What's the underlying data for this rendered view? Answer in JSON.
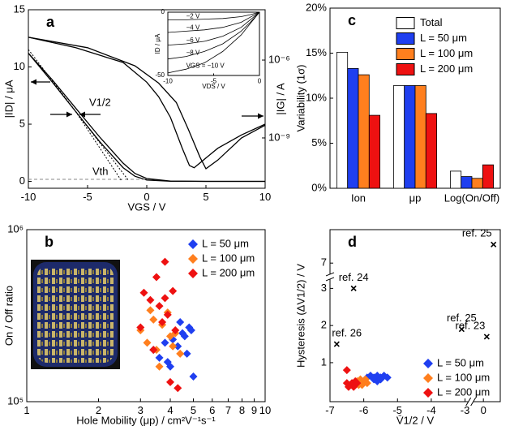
{
  "chart_data": [
    {
      "type": "line",
      "title": "a",
      "xlabel": "VGS / V",
      "ylabel": "|ID| / μA",
      "y2label": "|IG| / A",
      "xlim": [
        -10,
        10
      ],
      "xticks": [
        -10,
        -5,
        0,
        5,
        10
      ],
      "ylim": [
        -0.6,
        15
      ],
      "yticks": [
        0,
        5,
        10,
        15
      ],
      "y2lim": [
        1.15e-11,
        8.7e-05
      ],
      "y2log": true,
      "y2ticks": [
        {
          "value": 1e-09,
          "label": "10⁻⁹"
        },
        {
          "value": 1e-06,
          "label": "10⁻⁶"
        }
      ],
      "annotations": [
        "V1/2",
        "Vth"
      ],
      "series": [
        {
          "color": "#000000",
          "x": [
            -10,
            -8,
            -6,
            -4,
            -2,
            -1,
            0,
            2,
            5,
            10
          ],
          "values": [
            11.2,
            8.7,
            6.1,
            3.5,
            1.2,
            0.45,
            0.12,
            0.02,
            0,
            0
          ]
        },
        {
          "color": "#000000",
          "x": [
            -10,
            -8,
            -6,
            -4,
            -2,
            -1,
            0,
            2,
            5,
            10
          ],
          "values": [
            11.2,
            8.9,
            6.4,
            3.9,
            1.6,
            0.7,
            0.25,
            0.03,
            0,
            0
          ]
        },
        {
          "color": "#000000",
          "axis": "y2",
          "x": [
            -10,
            -6,
            -2,
            0,
            1,
            2,
            3,
            3.6,
            4,
            6,
            8,
            10
          ],
          "values": [
            7.6e-06,
            3e-06,
            8.1e-07,
            1.4e-07,
            3.9e-08,
            6.2e-09,
            4e-10,
            8.7e-11,
            7.1e-11,
            4e-10,
            1.3e-09,
            3.4e-09
          ]
        },
        {
          "color": "#000000",
          "axis": "y2",
          "x": [
            -10,
            -5,
            -1,
            1,
            2.5,
            3.5,
            4.5,
            5,
            6,
            8,
            10
          ],
          "values": [
            7.6e-06,
            3e-06,
            6e-07,
            1.3e-07,
            2.3e-08,
            2.2e-09,
            1.8e-10,
            6.5e-11,
            1.4e-10,
            1e-09,
            3.1e-09
          ]
        }
      ]
    },
    {
      "type": "line",
      "xlabel": "VDS / V",
      "ylabel": "ID / μA",
      "xlim": [
        -10,
        0
      ],
      "xticks": [
        -10,
        -5,
        0
      ],
      "ylim": [
        -50,
        0
      ],
      "yticks": [
        -50,
        0
      ],
      "series": [
        {
          "name": "−2 V",
          "color": "#000000",
          "x": [
            -10,
            -8,
            -6,
            -4,
            -2,
            -1,
            0
          ],
          "values": [
            -6,
            -6,
            -5.5,
            -5,
            -3.5,
            -2,
            0
          ]
        },
        {
          "name": "−4 V",
          "color": "#000000",
          "x": [
            -10,
            -8,
            -6,
            -4,
            -2,
            -1,
            0
          ],
          "values": [
            -16,
            -15,
            -14,
            -12,
            -8,
            -4,
            0
          ]
        },
        {
          "name": "−6 V",
          "color": "#000000",
          "x": [
            -10,
            -8,
            -6,
            -4,
            -2,
            -1,
            0
          ],
          "values": [
            -26,
            -25,
            -23,
            -19,
            -12,
            -6,
            0
          ]
        },
        {
          "name": "−8 V",
          "color": "#000000",
          "x": [
            -10,
            -8,
            -6,
            -4,
            -2,
            -1,
            0
          ],
          "values": [
            -37,
            -35,
            -31,
            -25,
            -15,
            -8,
            0
          ]
        },
        {
          "name": "VGS = −10 V",
          "color": "#000000",
          "x": [
            -10,
            -8,
            -6,
            -4,
            -2,
            -1,
            0
          ],
          "values": [
            -48,
            -45,
            -40,
            -31,
            -18,
            -9,
            0
          ]
        }
      ]
    },
    {
      "type": "scatter",
      "title": "b",
      "xlabel": "Hole Mobility (μp) / cm²V⁻¹s⁻¹",
      "ylabel": "On / Off ratio",
      "xlog": true,
      "ylog": true,
      "xlim": [
        1,
        10
      ],
      "xticks": [
        1,
        2,
        3,
        4,
        5,
        6,
        7,
        8,
        9,
        10
      ],
      "ylim": [
        100000,
        1000000
      ],
      "yticks": [
        {
          "value": 100000,
          "label": "10⁵"
        },
        {
          "value": 1000000,
          "label": "10⁶"
        }
      ],
      "marker": "diamond",
      "legend": "upper right",
      "series": [
        {
          "name": "L = 50 μm",
          "color": "#1f3ff0",
          "x": [
            3.4,
            3.6,
            3.9,
            4.1,
            4.3,
            4.5,
            4.7,
            4.9,
            5.0,
            4.4,
            3.8,
            4.0,
            4.6,
            4.8
          ],
          "values": [
            200000,
            180000,
            170000,
            230000,
            210000,
            250000,
            190000,
            260000,
            140000,
            290000,
            220000,
            160000,
            240000,
            270000
          ]
        },
        {
          "name": "L = 100 μm",
          "color": "#ff7f1e",
          "x": [
            3.0,
            3.2,
            3.4,
            3.5,
            3.7,
            3.9,
            4.0,
            4.2,
            4.4,
            3.6,
            3.3,
            4.1
          ],
          "values": [
            260000,
            220000,
            300000,
            200000,
            280000,
            330000,
            240000,
            250000,
            190000,
            160000,
            340000,
            210000
          ]
        },
        {
          "name": "L = 200 μm",
          "color": "#ee1111",
          "x": [
            3.0,
            3.1,
            3.3,
            3.5,
            3.6,
            3.7,
            3.8,
            3.9,
            4.0,
            4.1,
            4.2,
            3.8,
            3.4,
            4.3
          ],
          "values": [
            270000,
            430000,
            390000,
            530000,
            360000,
            290000,
            650000,
            320000,
            130000,
            440000,
            260000,
            400000,
            200000,
            120000
          ]
        }
      ]
    },
    {
      "type": "bar",
      "title": "c",
      "ylabel": "Variability (1σ)",
      "categories": [
        "Ion",
        "μp",
        "Log(On/Off)"
      ],
      "ylim": [
        0,
        20
      ],
      "yticks": [
        {
          "value": 0,
          "label": "0%"
        },
        {
          "value": 5,
          "label": "5%"
        },
        {
          "value": 10,
          "label": "10%"
        },
        {
          "value": 15,
          "label": "15%"
        },
        {
          "value": 20,
          "label": "20%"
        }
      ],
      "legend": "upper right",
      "series": [
        {
          "name": "Total",
          "color": "#ffffff",
          "values": [
            15.1,
            11.4,
            1.9
          ]
        },
        {
          "name": "L = 50 μm",
          "color": "#1f3ff0",
          "values": [
            13.3,
            11.4,
            1.3
          ]
        },
        {
          "name": "L = 100 μm",
          "color": "#ff7f1e",
          "values": [
            12.6,
            11.4,
            1.1
          ]
        },
        {
          "name": "L = 200 μm",
          "color": "#ee1111",
          "values": [
            8.1,
            8.3,
            2.6
          ]
        }
      ]
    },
    {
      "type": "scatter",
      "title": "d",
      "xlabel": "V̄1/2 / V",
      "ylabel": "Hysteresis (ΔV1/2) / V",
      "xlim": [
        -7,
        0.5
      ],
      "xbreak": [
        -2.9,
        -0.3
      ],
      "xticks": [
        -7,
        -6,
        -5,
        -4,
        -3,
        0
      ],
      "ylim": [
        -0.05,
        7.9
      ],
      "ybreak": [
        3.25,
        6.7
      ],
      "yticks": [
        1,
        2,
        3,
        7
      ],
      "marker": "diamond",
      "legend": "lower right",
      "series": [
        {
          "name": "L = 50 μm",
          "color": "#1f3ff0",
          "x": [
            -5.9,
            -5.8,
            -5.7,
            -5.6,
            -5.5,
            -5.4,
            -5.3,
            -5.6,
            -5.5,
            -5.7
          ],
          "values": [
            0.6,
            0.65,
            0.55,
            0.65,
            0.6,
            0.65,
            0.6,
            0.5,
            0.55,
            0.6
          ]
        },
        {
          "name": "L = 100 μm",
          "color": "#ff7f1e",
          "x": [
            -6.3,
            -6.2,
            -6.1,
            -6.0,
            -5.9,
            -6.05,
            -6.15,
            -5.95
          ],
          "values": [
            0.45,
            0.5,
            0.55,
            0.5,
            0.45,
            0.4,
            0.4,
            0.55
          ]
        },
        {
          "name": "L = 200 μm",
          "color": "#ee1111",
          "x": [
            -6.5,
            -6.4,
            -6.35,
            -6.3,
            -6.25,
            -6.2,
            -6.45,
            -6.5
          ],
          "values": [
            0.8,
            0.4,
            0.45,
            0.35,
            0.5,
            0.45,
            0.35,
            0.45
          ]
        }
      ],
      "annotations": [
        {
          "text": "ref. 25",
          "x": 0.3,
          "y": 7.5
        },
        {
          "text": "ref. 24",
          "x": -6.3,
          "y": 3.0
        },
        {
          "text": "ref. 26",
          "x": -6.8,
          "y": 1.5
        },
        {
          "text": "ref. 25",
          "x": -3.1,
          "y": 1.9
        },
        {
          "text": "ref. 23",
          "x": 0.1,
          "y": 1.7
        }
      ]
    }
  ]
}
